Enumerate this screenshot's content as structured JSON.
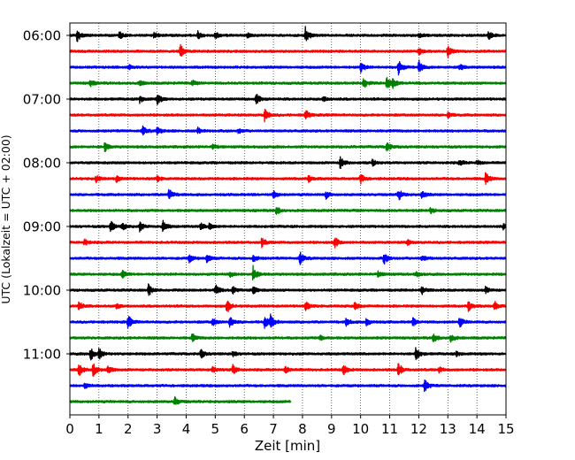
{
  "chart_data": {
    "type": "line",
    "chart_kind": "helicorder seismogram",
    "xlabel": "Zeit  [min]",
    "ylabel": "UTC (Lokalzeit = UTC + 02:00)",
    "xlim": [
      0,
      15
    ],
    "x_ticks": [
      0,
      1,
      2,
      3,
      4,
      5,
      6,
      7,
      8,
      9,
      10,
      11,
      12,
      13,
      14,
      15
    ],
    "x_tick_labels": [
      "0",
      "1",
      "2",
      "3",
      "4",
      "5",
      "6",
      "7",
      "8",
      "9",
      "10",
      "11",
      "12",
      "13",
      "14",
      "15"
    ],
    "x_grid": "dotted vertical lines every minute",
    "y_tick_labels": [
      "06:00",
      "07:00",
      "08:00",
      "09:00",
      "10:00",
      "11:00"
    ],
    "row_minutes": 15,
    "start_time": "06:00",
    "row_colors": [
      "#000000",
      "#ff0000",
      "#0000ff",
      "#008000"
    ],
    "rows": [
      {
        "start": "06:00",
        "end_min": 15,
        "events": [
          [
            0.25,
            1.0
          ],
          [
            1.7,
            0.6
          ],
          [
            2.9,
            0.5
          ],
          [
            4.4,
            0.6
          ],
          [
            5.0,
            0.5
          ],
          [
            6.1,
            0.4
          ],
          [
            8.1,
            1.3
          ],
          [
            12.0,
            0.5
          ],
          [
            14.4,
            0.6
          ]
        ]
      },
      {
        "start": "06:15",
        "end_min": 15,
        "events": [
          [
            3.8,
            1.0
          ],
          [
            12.0,
            0.5
          ],
          [
            13.0,
            0.9
          ]
        ]
      },
      {
        "start": "06:30",
        "end_min": 15,
        "events": [
          [
            2.0,
            0.4
          ],
          [
            10.0,
            0.8
          ],
          [
            11.3,
            1.2
          ],
          [
            12.0,
            1.0
          ],
          [
            13.4,
            0.5
          ]
        ]
      },
      {
        "start": "06:45",
        "end_min": 15,
        "events": [
          [
            0.7,
            0.5
          ],
          [
            2.4,
            0.4
          ],
          [
            4.2,
            0.4
          ],
          [
            10.1,
            0.8
          ],
          [
            10.9,
            0.9
          ],
          [
            11.1,
            0.8
          ]
        ]
      },
      {
        "start": "07:00",
        "end_min": 15,
        "events": [
          [
            2.4,
            0.6
          ],
          [
            3.0,
            0.9
          ],
          [
            6.4,
            1.0
          ],
          [
            8.7,
            0.4
          ]
        ]
      },
      {
        "start": "07:15",
        "end_min": 15,
        "events": [
          [
            6.7,
            1.0
          ],
          [
            8.1,
            0.8
          ],
          [
            13.0,
            0.5
          ]
        ]
      },
      {
        "start": "07:30",
        "end_min": 15,
        "events": [
          [
            2.5,
            0.7
          ],
          [
            3.0,
            0.6
          ],
          [
            4.4,
            0.5
          ],
          [
            5.8,
            0.4
          ]
        ]
      },
      {
        "start": "07:45",
        "end_min": 15,
        "events": [
          [
            1.2,
            0.7
          ],
          [
            4.9,
            0.4
          ],
          [
            10.9,
            0.8
          ]
        ]
      },
      {
        "start": "08:00",
        "end_min": 15,
        "events": [
          [
            9.3,
            1.0
          ],
          [
            10.4,
            0.5
          ],
          [
            13.4,
            0.5
          ],
          [
            14.0,
            0.4
          ]
        ]
      },
      {
        "start": "08:15",
        "end_min": 15,
        "events": [
          [
            0.9,
            0.5
          ],
          [
            1.6,
            0.5
          ],
          [
            3.0,
            0.4
          ],
          [
            8.2,
            0.5
          ],
          [
            10.0,
            0.8
          ],
          [
            14.3,
            1.0
          ]
        ]
      },
      {
        "start": "08:30",
        "end_min": 15,
        "events": [
          [
            3.4,
            0.9
          ],
          [
            7.0,
            0.6
          ],
          [
            8.8,
            0.6
          ],
          [
            11.3,
            0.9
          ],
          [
            12.1,
            0.5
          ]
        ]
      },
      {
        "start": "08:45",
        "end_min": 15,
        "events": [
          [
            7.1,
            0.6
          ],
          [
            12.4,
            0.4
          ]
        ]
      },
      {
        "start": "09:00",
        "end_min": 15,
        "events": [
          [
            1.4,
            0.9
          ],
          [
            1.8,
            0.6
          ],
          [
            2.4,
            0.7
          ],
          [
            3.2,
            0.9
          ],
          [
            4.5,
            0.5
          ],
          [
            4.8,
            0.5
          ],
          [
            14.9,
            0.4
          ]
        ]
      },
      {
        "start": "09:15",
        "end_min": 15,
        "events": [
          [
            0.5,
            0.5
          ],
          [
            6.6,
            0.7
          ],
          [
            9.1,
            1.0
          ],
          [
            11.6,
            0.4
          ]
        ]
      },
      {
        "start": "09:30",
        "end_min": 15,
        "events": [
          [
            4.1,
            0.6
          ],
          [
            4.7,
            0.7
          ],
          [
            6.3,
            0.5
          ],
          [
            7.9,
            1.0
          ],
          [
            10.8,
            0.9
          ],
          [
            12.1,
            0.5
          ]
        ]
      },
      {
        "start": "09:45",
        "end_min": 15,
        "events": [
          [
            1.8,
            0.6
          ],
          [
            5.5,
            0.4
          ],
          [
            6.3,
            1.2
          ],
          [
            10.6,
            0.4
          ],
          [
            11.9,
            0.4
          ]
        ]
      },
      {
        "start": "10:00",
        "end_min": 15,
        "events": [
          [
            2.7,
            0.9
          ],
          [
            5.0,
            0.9
          ],
          [
            5.6,
            0.6
          ],
          [
            6.3,
            0.6
          ],
          [
            12.1,
            0.7
          ],
          [
            14.3,
            0.5
          ]
        ]
      },
      {
        "start": "10:15",
        "end_min": 15,
        "events": [
          [
            0.3,
            0.7
          ],
          [
            1.6,
            0.4
          ],
          [
            5.4,
            1.1
          ],
          [
            8.1,
            0.7
          ],
          [
            9.8,
            0.6
          ],
          [
            13.7,
            0.8
          ],
          [
            14.6,
            0.7
          ]
        ]
      },
      {
        "start": "10:30",
        "end_min": 15,
        "events": [
          [
            2.0,
            1.0
          ],
          [
            4.9,
            0.6
          ],
          [
            5.5,
            0.9
          ],
          [
            6.7,
            1.0
          ],
          [
            6.9,
            0.9
          ],
          [
            9.5,
            0.6
          ],
          [
            10.2,
            0.6
          ],
          [
            11.8,
            0.6
          ],
          [
            13.4,
            0.8
          ]
        ]
      },
      {
        "start": "10:45",
        "end_min": 15,
        "events": [
          [
            4.2,
            0.6
          ],
          [
            8.6,
            0.4
          ],
          [
            12.5,
            0.7
          ],
          [
            13.1,
            0.6
          ]
        ]
      },
      {
        "start": "11:00",
        "end_min": 15,
        "events": [
          [
            0.7,
            1.2
          ],
          [
            1.0,
            0.8
          ],
          [
            4.5,
            0.7
          ],
          [
            5.6,
            0.4
          ],
          [
            11.9,
            1.0
          ],
          [
            13.3,
            0.4
          ]
        ]
      },
      {
        "start": "11:15",
        "end_min": 15,
        "events": [
          [
            0.3,
            1.1
          ],
          [
            0.8,
            1.0
          ],
          [
            1.3,
            0.7
          ],
          [
            4.9,
            0.5
          ],
          [
            5.6,
            0.8
          ],
          [
            7.4,
            0.6
          ],
          [
            9.4,
            0.8
          ],
          [
            11.3,
            1.1
          ],
          [
            12.7,
            0.4
          ]
        ]
      },
      {
        "start": "11:30",
        "end_min": 15,
        "events": [
          [
            0.5,
            0.4
          ],
          [
            12.2,
            1.0
          ]
        ]
      },
      {
        "start": "11:45",
        "end_min": 7.6,
        "events": [
          [
            3.6,
            0.7
          ]
        ]
      }
    ]
  }
}
